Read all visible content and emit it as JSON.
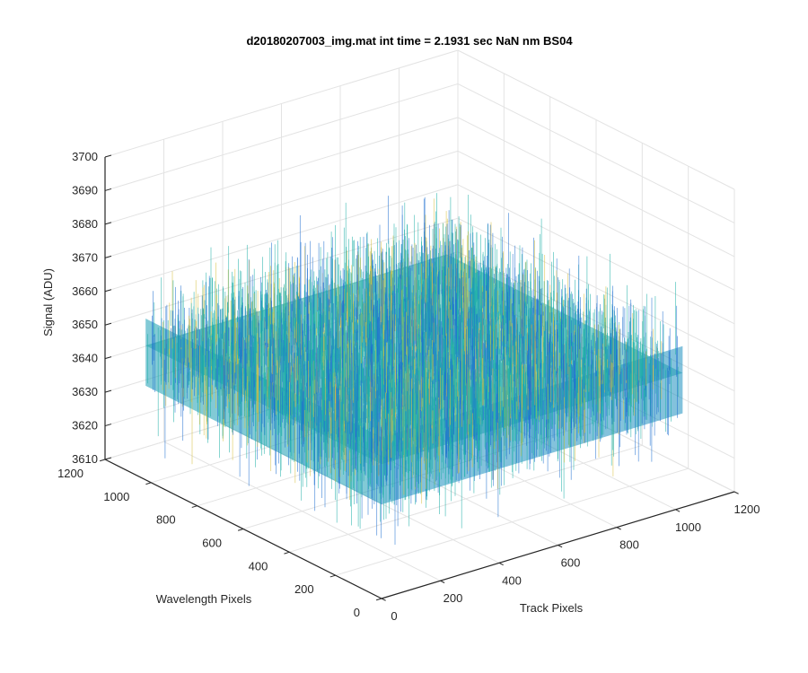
{
  "chart_data": {
    "type": "surface",
    "title": "d20180207003_img.mat int time = 2.1931 sec  NaN nm BS04",
    "xlabel": "Track Pixels",
    "ylabel": "Wavelength Pixels",
    "zlabel": "Signal (ADU)",
    "xlim": [
      0,
      1200
    ],
    "ylim": [
      0,
      1200
    ],
    "zlim": [
      3610,
      3700
    ],
    "x_ticks": [
      "0",
      "200",
      "400",
      "600",
      "800",
      "1000",
      "1200"
    ],
    "y_ticks": [
      "0",
      "200",
      "400",
      "600",
      "800",
      "1000",
      "1200"
    ],
    "z_ticks": [
      "3610",
      "3620",
      "3630",
      "3640",
      "3650",
      "3660",
      "3670",
      "3680",
      "3690",
      "3700"
    ],
    "grid": true,
    "colormap": "parula",
    "surface_extent": {
      "x": [
        0,
        1024
      ],
      "y": [
        0,
        1024
      ]
    },
    "signal_mean": 3650,
    "signal_range": [
      3610,
      3690
    ],
    "colors": {
      "low": "#1f6fd1",
      "mid": "#1fb0a8",
      "high": "#d8c040"
    }
  }
}
